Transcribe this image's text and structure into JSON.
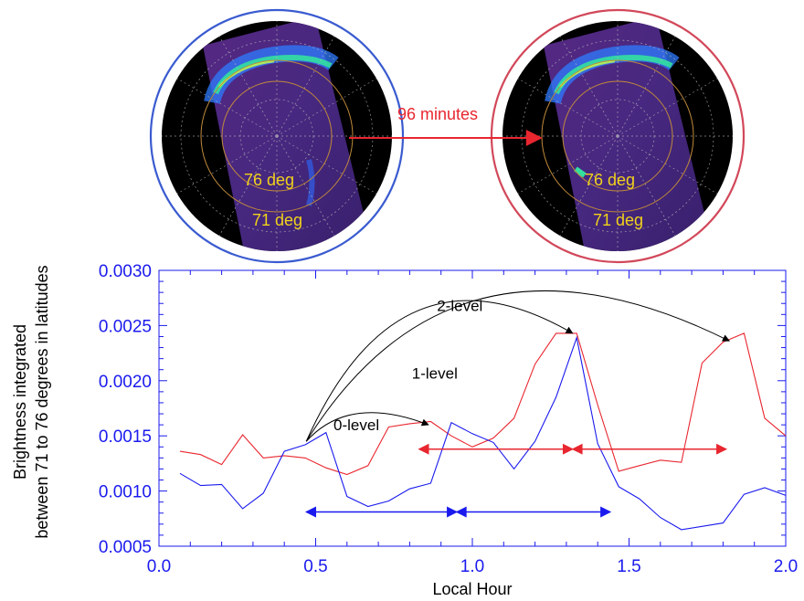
{
  "chart_data": {
    "type": "line",
    "xlabel": "Local Hour",
    "ylabel": [
      "Brightness integrated",
      "between 71 to 76 degrees in latitudes"
    ],
    "xlim": [
      0.0,
      2.0
    ],
    "ylim": [
      0.0005,
      0.003
    ],
    "x_ticks": [
      "0.0",
      "0.5",
      "1.0",
      "1.5",
      "2.0"
    ],
    "y_ticks": [
      "0.0005",
      "0.0010",
      "0.0015",
      "0.0020",
      "0.0025",
      "0.0030"
    ],
    "x_tick_values": [
      0.0,
      0.5,
      1.0,
      1.5,
      2.0
    ],
    "y_tick_values": [
      0.0005,
      0.001,
      0.0015,
      0.002,
      0.0025,
      0.003
    ],
    "grid": false,
    "colors": {
      "axis": "#1a1aee",
      "red_series": "#e8262f",
      "blue_series": "#1a1aee",
      "annotation": "#000000"
    },
    "series": [
      {
        "color": "#e8262f",
        "x": [
          0.067,
          0.133,
          0.2,
          0.267,
          0.333,
          0.4,
          0.467,
          0.533,
          0.6,
          0.667,
          0.733,
          0.8,
          0.867,
          0.933,
          1.0,
          1.067,
          1.133,
          1.2,
          1.267,
          1.333,
          1.4,
          1.467,
          1.533,
          1.6,
          1.667,
          1.733,
          1.8,
          1.867,
          1.933,
          2.0
        ],
        "values": [
          0.00136,
          0.00133,
          0.00124,
          0.00151,
          0.0013,
          0.00132,
          0.0013,
          0.00121,
          0.00115,
          0.00123,
          0.00158,
          0.00161,
          0.00163,
          0.0015,
          0.0014,
          0.00148,
          0.00166,
          0.00215,
          0.00243,
          0.00243,
          0.00178,
          0.00118,
          0.00123,
          0.00128,
          0.00126,
          0.00216,
          0.00235,
          0.00243,
          0.00166,
          0.0015
        ]
      },
      {
        "color": "#1a1aee",
        "x": [
          0.067,
          0.133,
          0.2,
          0.267,
          0.333,
          0.4,
          0.467,
          0.533,
          0.6,
          0.667,
          0.733,
          0.8,
          0.867,
          0.933,
          1.0,
          1.067,
          1.133,
          1.2,
          1.267,
          1.333,
          1.4,
          1.467,
          1.533,
          1.6,
          1.667,
          1.733,
          1.8,
          1.867,
          1.933,
          2.0
        ],
        "values": [
          0.00116,
          0.00105,
          0.00106,
          0.00084,
          0.00098,
          0.00136,
          0.00142,
          0.00153,
          0.00095,
          0.00086,
          0.00091,
          0.00102,
          0.00107,
          0.00162,
          0.00152,
          0.00144,
          0.0012,
          0.00145,
          0.00185,
          0.00239,
          0.00143,
          0.00104,
          0.00093,
          0.00076,
          0.00065,
          0.00068,
          0.00071,
          0.00097,
          0.00103,
          0.00096
        ]
      }
    ],
    "annotations": [
      {
        "text": "0-level",
        "text_x": 0.63,
        "text_y": 0.00155,
        "arrow_from": [
          0.47,
          0.00145
        ],
        "arrow_to": [
          0.86,
          0.0016
        ]
      },
      {
        "text": "1-level",
        "text_x": 0.88,
        "text_y": 0.00202,
        "arrow_from": [
          0.47,
          0.00145
        ],
        "arrow_to": [
          1.32,
          0.00243
        ]
      },
      {
        "text": "2-level",
        "text_x": 0.96,
        "text_y": 0.00263,
        "arrow_from": [
          0.47,
          0.00145
        ],
        "arrow_to": [
          1.82,
          0.00236
        ]
      }
    ],
    "double_arrows": [
      {
        "color": "#e8262f",
        "x_from": 0.83,
        "x_to": 1.32,
        "y": 0.00138
      },
      {
        "color": "#e8262f",
        "x_from": 1.32,
        "x_to": 1.81,
        "y": 0.00138
      },
      {
        "color": "#1a1aee",
        "x_from": 0.47,
        "x_to": 0.95,
        "y": 0.00081
      },
      {
        "color": "#1a1aee",
        "x_from": 0.95,
        "x_to": 1.44,
        "y": 0.00081
      }
    ]
  },
  "polar_images": [
    {
      "ring_color": "#3a5bd0",
      "labels": [
        "76 deg",
        "71 deg"
      ]
    },
    {
      "ring_color": "#d2485a",
      "labels": [
        "76 deg",
        "71 deg"
      ]
    }
  ],
  "transition": {
    "text": "96 minutes",
    "color": "#e8262f"
  }
}
